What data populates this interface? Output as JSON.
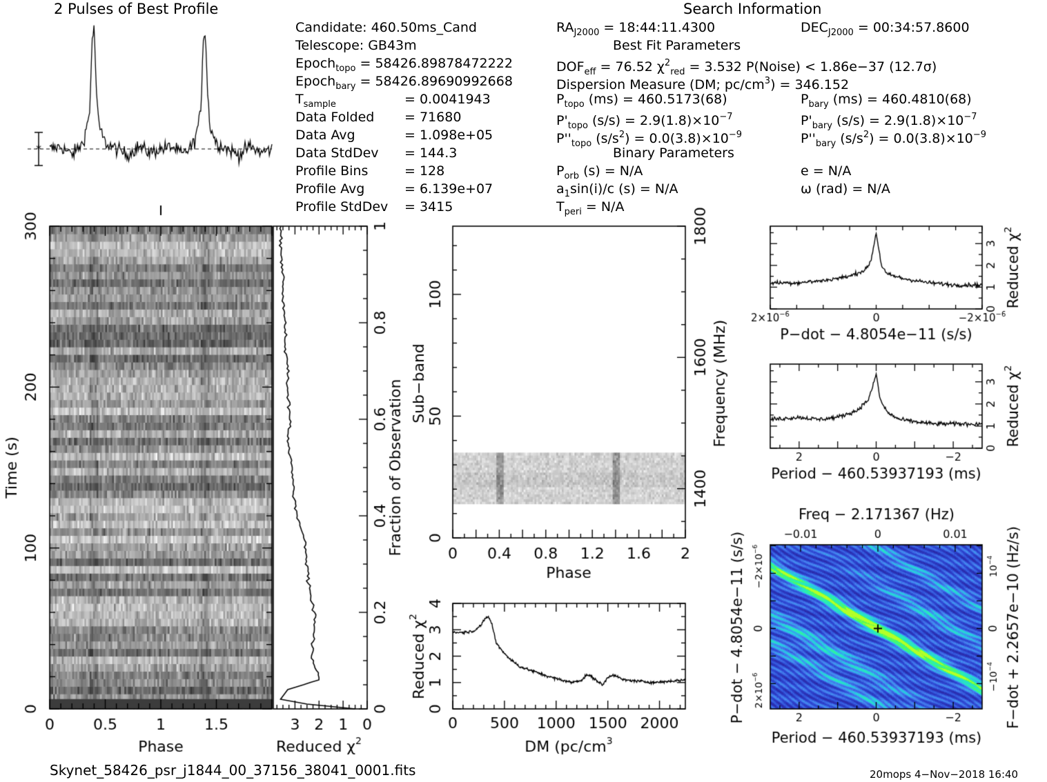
{
  "header": {
    "profile_title": "2 Pulses of Best Profile",
    "search_title": "Search Information",
    "best_fit_title": "Best Fit Parameters",
    "binary_title": "Binary Parameters"
  },
  "info": {
    "candidate": "Candidate:  460.50ms_Cand",
    "telescope": "Telescope:  GB43m",
    "epoch_topo": "58426.89878472222",
    "epoch_bary": "58426.89690992668",
    "t_sample": "0.0041943",
    "data_folded": "71680",
    "data_avg": "1.098e+05",
    "data_stddev": "144.3",
    "profile_bins": "128",
    "profile_avg": "6.139e+07",
    "profile_stddev": "3415"
  },
  "search": {
    "ra": "18:44:11.4300",
    "dec": "00:34:57.8600",
    "dof_eff": "76.52",
    "chi2_red": "3.532",
    "p_noise": "1.86e−37",
    "sigma": "(12.7σ)",
    "dm": "346.152",
    "p_topo": "460.5173(68)",
    "p_bary": "460.4810(68)",
    "pdot_topo": "2.9(1.8)×10",
    "pdot_topo_exp": "−7",
    "pdot_bary": "2.9(1.8)×10",
    "pdot_bary_exp": "−7",
    "pddot_topo": "0.0(3.8)×10",
    "pddot_topo_exp": "−9",
    "pddot_bary": "0.0(3.8)×10",
    "pddot_bary_exp": "−9",
    "p_orb": "N/A",
    "e": "N/A",
    "a1sini": "N/A",
    "omega": "N/A",
    "t_peri": "N/A"
  },
  "footer": {
    "filename": "Skynet_58426_psr_j1844_00_37156_38041_0001.fits",
    "stamp": "20mops  4−Nov−2018 16:40"
  },
  "chart_data": [
    {
      "id": "profile",
      "type": "line",
      "title": "2 Pulses of Best Profile",
      "x": [
        0,
        0.1,
        0.2,
        0.3,
        0.36,
        0.38,
        0.4,
        0.42,
        0.44,
        0.5,
        0.6,
        0.7,
        0.8,
        0.9,
        1.0,
        1.1,
        1.2,
        1.3,
        1.36,
        1.38,
        1.4,
        1.42,
        1.44,
        1.5,
        1.6,
        1.7,
        1.8,
        1.9,
        2.0
      ],
      "y": [
        0,
        0.02,
        -0.05,
        0.05,
        0.3,
        0.9,
        1.0,
        0.5,
        0.2,
        0.05,
        0.0,
        -0.05,
        0.02,
        -0.03,
        0.0,
        0.02,
        -0.05,
        0.05,
        0.3,
        0.9,
        1.0,
        0.5,
        0.2,
        0.05,
        0.0,
        -0.05,
        0.02,
        -0.03,
        0.0
      ]
    },
    {
      "id": "time_phase",
      "type": "heatmap",
      "xlabel": "Phase",
      "ylabel": "Time (s)",
      "x_ticks": [
        "0",
        "0.5",
        "1",
        "1.5"
      ],
      "y_ticks": [
        "0",
        "100",
        "200",
        "300"
      ],
      "xlim": [
        0,
        2
      ],
      "ylim": [
        0,
        300
      ]
    },
    {
      "id": "time_chi2",
      "type": "line",
      "xlabel": "Reduced χ",
      "xlabel_sup": "2",
      "ylabel": "Fraction of Observation",
      "x_ticks": [
        "3",
        "2",
        "1",
        "0"
      ],
      "y_ticks": [
        "0",
        "0.2",
        "0.4",
        "0.6",
        "0.8",
        "1"
      ],
      "xlim": [
        3.9,
        0
      ],
      "ylim": [
        0,
        1
      ],
      "fraction": [
        0,
        0.01,
        0.02,
        0.04,
        0.06,
        0.08,
        0.1,
        0.15,
        0.2,
        0.25,
        0.3,
        0.35,
        0.4,
        0.45,
        0.5,
        0.55,
        0.6,
        0.65,
        0.7,
        0.75,
        0.8,
        0.85,
        0.9,
        0.95,
        1.0
      ],
      "chi2": [
        0.5,
        2.5,
        3.6,
        3.3,
        2.0,
        2.1,
        2.3,
        2.2,
        2.2,
        2.4,
        2.5,
        2.6,
        2.9,
        3.1,
        3.1,
        3.3,
        3.2,
        3.3,
        3.3,
        3.4,
        3.4,
        3.5,
        3.5,
        3.6,
        3.6
      ]
    },
    {
      "id": "subband_phase",
      "type": "heatmap",
      "xlabel": "Phase",
      "ylabel": "Sub−band",
      "y2label": "Frequency (MHz)",
      "x_ticks": [
        "0",
        "0.4",
        "0.8",
        "1.2",
        "1.6",
        "2"
      ],
      "y_ticks": [
        "0",
        "50",
        "100"
      ],
      "y2_ticks": [
        "1400",
        "1600",
        "1800"
      ],
      "xlim": [
        0,
        2
      ],
      "ylim": [
        0,
        128
      ],
      "active_subbands": [
        14,
        35
      ]
    },
    {
      "id": "dm_chi2",
      "type": "line",
      "xlabel": "DM (pc/cm",
      "xlabel_sup": "3",
      "ylabel": "Reduced χ",
      "ylabel_sup": "2",
      "x_ticks": [
        "0",
        "500",
        "1000",
        "1500",
        "2000"
      ],
      "y_ticks": [
        "0",
        "1",
        "2",
        "3",
        "4"
      ],
      "xlim": [
        0,
        2250
      ],
      "ylim": [
        0,
        4
      ],
      "x": [
        0,
        100,
        200,
        280,
        320,
        346,
        380,
        420,
        480,
        550,
        650,
        800,
        950,
        1050,
        1150,
        1250,
        1300,
        1350,
        1450,
        1500,
        1550,
        1650,
        1800,
        1950,
        2100,
        2250
      ],
      "y": [
        2.9,
        2.9,
        2.95,
        3.2,
        3.45,
        3.5,
        3.2,
        2.5,
        2.2,
        1.9,
        1.6,
        1.4,
        1.2,
        1.1,
        1.0,
        1.1,
        1.3,
        1.2,
        0.9,
        1.2,
        1.3,
        1.1,
        1.05,
        1.0,
        1.05,
        1.1
      ]
    },
    {
      "id": "pdot_chi2",
      "type": "line",
      "xlabel": "P−dot − 4.8054e−11 (s/s)",
      "ylabel": "Reduced χ",
      "ylabel_sup": "2",
      "x_ticks": [
        "2×10",
        "0",
        "−2×10"
      ],
      "x_tick_exp": "−6",
      "y_ticks": [
        "0",
        "1",
        "2",
        "3"
      ],
      "xlim": [
        2e-06,
        -2e-06
      ],
      "ylim": [
        0,
        3.8
      ],
      "x": [
        2e-06,
        1.5e-06,
        1e-06,
        5e-07,
        2e-07,
        1e-07,
        0,
        -1e-07,
        -2e-07,
        -5e-07,
        -1e-06,
        -1.5e-06,
        -2e-06
      ],
      "y": [
        1.2,
        1.2,
        1.3,
        1.5,
        1.8,
        2.2,
        3.5,
        2.0,
        1.6,
        1.4,
        1.2,
        1.1,
        1.1
      ]
    },
    {
      "id": "period_chi2",
      "type": "line",
      "xlabel": "Period − 460.53937193 (ms)",
      "ylabel": "Reduced χ",
      "ylabel_sup": "2",
      "x_ticks": [
        "2",
        "0",
        "−2"
      ],
      "y_ticks": [
        "0",
        "1",
        "2",
        "3"
      ],
      "xlim": [
        2.75,
        -2.75
      ],
      "ylim": [
        0,
        3.8
      ],
      "x": [
        2.75,
        2.0,
        1.5,
        1.0,
        0.5,
        0.2,
        0.05,
        0,
        -0.1,
        -0.3,
        -0.6,
        -1.0,
        -1.5,
        -2.0,
        -2.75
      ],
      "y": [
        1.3,
        1.4,
        1.3,
        1.4,
        1.7,
        2.2,
        3.0,
        3.4,
        2.2,
        1.6,
        1.3,
        1.2,
        1.1,
        1.1,
        1.1
      ]
    },
    {
      "id": "ppdot_map",
      "type": "heatmap",
      "title": "Freq − 2.171367 (Hz)",
      "xlabel": "Period − 460.53937193 (ms)",
      "ylabel": "P−dot − 4.8054e−11 (s/s)",
      "y2label": "F−dot + 2.2657e−10 (Hz/s)",
      "x_ticks": [
        "2",
        "0",
        "−2"
      ],
      "top_ticks": [
        "−0.01",
        "0",
        "0.01"
      ],
      "y_ticks": [
        "−2×10",
        "0",
        "2×10"
      ],
      "y_tick_exp": "−6",
      "y2_ticks": [
        "10",
        "0",
        "−10"
      ],
      "y2_tick_exp": "−4",
      "best_fit": [
        0,
        0
      ]
    }
  ]
}
